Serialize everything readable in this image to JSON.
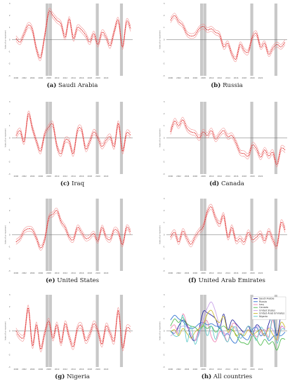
{
  "figure": {
    "shaded_years": [
      2007.6,
      2008.4,
      2019.85,
      2025.75
    ]
  },
  "chart_data": [
    {
      "type": "line",
      "panel": "a",
      "label": "(a)",
      "title": "Saudi Arabia",
      "ylabel": "Index of co-movement",
      "x_range": [
        1999.0,
        2028.5
      ],
      "ylim": [
        -3,
        3
      ],
      "yticks": [
        -3,
        -2,
        -1,
        0,
        1,
        2,
        3
      ],
      "xticks": [
        2000,
        2002,
        2004,
        2006,
        2008,
        2010,
        2012,
        2014,
        2016,
        2018,
        2020,
        2022
      ],
      "band": 0.22,
      "series": [
        {
          "color": "#e03030",
          "x": [
            2000,
            2001,
            2002,
            2003,
            2004,
            2005,
            2006,
            2007,
            2008,
            2009,
            2010,
            2011,
            2012,
            2013,
            2014,
            2015,
            2016,
            2017,
            2018,
            2019,
            2020,
            2021,
            2022,
            2023,
            2024,
            2025,
            2026,
            2027,
            2028
          ],
          "y": [
            0.1,
            -0.2,
            0.5,
            1.2,
            0.8,
            -0.8,
            -1.5,
            0.3,
            2.3,
            2.0,
            1.6,
            1.3,
            0.2,
            1.7,
            0.1,
            1.0,
            0.8,
            0.4,
            -0.2,
            0.5,
            -0.4,
            0.6,
            0.2,
            -0.5,
            0.7,
            1.6,
            -0.6,
            1.5,
            0.9
          ]
        }
      ]
    },
    {
      "type": "line",
      "panel": "b",
      "label": "(b)",
      "title": "Russia",
      "ylabel": "Index of co-movement",
      "x_range": [
        1999.0,
        2028.5
      ],
      "ylim": [
        -3,
        3
      ],
      "yticks": [
        -3,
        -2,
        -1,
        0,
        1,
        2,
        3
      ],
      "xticks": [
        2000,
        2002,
        2004,
        2006,
        2008,
        2010,
        2012,
        2014,
        2016,
        2018,
        2020,
        2022
      ],
      "band": 0.2,
      "series": [
        {
          "color": "#e03030",
          "x": [
            2000,
            2001,
            2002,
            2003,
            2004,
            2005,
            2006,
            2007,
            2008,
            2009,
            2010,
            2011,
            2012,
            2013,
            2014,
            2015,
            2016,
            2017,
            2018,
            2019,
            2020,
            2021,
            2022,
            2023,
            2024,
            2025,
            2026,
            2027,
            2028
          ],
          "y": [
            1.6,
            2.0,
            1.5,
            1.2,
            0.5,
            0.3,
            0.4,
            0.9,
            1.1,
            0.8,
            0.9,
            0.6,
            0.4,
            -0.6,
            -0.3,
            -1.2,
            -1.6,
            -0.4,
            -0.9,
            -1.0,
            0.2,
            0.5,
            -0.6,
            -0.3,
            -1.2,
            -0.7,
            -0.4,
            -0.6,
            -0.2
          ]
        }
      ]
    },
    {
      "type": "line",
      "panel": "c",
      "label": "(c)",
      "title": "Iraq",
      "ylabel": "Index of co-movement",
      "x_range": [
        1999.0,
        2028.5
      ],
      "ylim": [
        -3,
        3
      ],
      "yticks": [
        -3,
        -2,
        -1,
        0,
        1,
        2,
        3
      ],
      "xticks": [
        2000,
        2002,
        2004,
        2006,
        2008,
        2010,
        2012,
        2014,
        2016,
        2018,
        2020,
        2022
      ],
      "band": 0.22,
      "series": [
        {
          "color": "#e03030",
          "x": [
            2000,
            2001,
            2002,
            2003,
            2004,
            2005,
            2006,
            2007,
            2008,
            2009,
            2010,
            2011,
            2012,
            2013,
            2014,
            2015,
            2016,
            2017,
            2018,
            2019,
            2020,
            2021,
            2022,
            2023,
            2024,
            2025,
            2026,
            2027,
            2028
          ],
          "y": [
            0.2,
            0.6,
            -0.3,
            2.0,
            0.8,
            -0.3,
            -1.1,
            0.3,
            0.9,
            1.1,
            -0.7,
            -1.3,
            -0.2,
            -0.3,
            -1.3,
            0.6,
            0.7,
            -0.9,
            -0.3,
            0.5,
            0.0,
            -0.7,
            -0.2,
            0.1,
            -0.7,
            1.2,
            -1.1,
            0.4,
            0.2
          ]
        }
      ]
    },
    {
      "type": "line",
      "panel": "d",
      "label": "(d)",
      "title": "Canada",
      "ylabel": "Index of co-movement",
      "x_range": [
        1999.0,
        2028.5
      ],
      "ylim": [
        -3,
        3
      ],
      "yticks": [
        -3,
        -2,
        -1,
        0,
        1,
        2,
        3
      ],
      "xticks": [
        2000,
        2002,
        2004,
        2006,
        2008,
        2010,
        2012,
        2014,
        2016,
        2018,
        2020,
        2022
      ],
      "band": 0.22,
      "series": [
        {
          "color": "#e03030",
          "x": [
            2000,
            2001,
            2002,
            2003,
            2004,
            2005,
            2006,
            2007,
            2008,
            2009,
            2010,
            2011,
            2012,
            2013,
            2014,
            2015,
            2016,
            2017,
            2018,
            2019,
            2020,
            2021,
            2022,
            2023,
            2024,
            2025,
            2026,
            2027,
            2028
          ],
          "y": [
            0.5,
            1.4,
            1.0,
            1.5,
            0.8,
            0.5,
            0.4,
            0.0,
            0.5,
            0.2,
            0.6,
            -0.1,
            0.3,
            0.6,
            0.1,
            0.2,
            -0.4,
            -1.2,
            -1.3,
            -1.5,
            -0.6,
            -0.9,
            -1.6,
            -1.0,
            -1.5,
            -1.2,
            -2.2,
            -0.9,
            -1.0
          ]
        }
      ]
    },
    {
      "type": "line",
      "panel": "e",
      "label": "(e)",
      "title": "United States",
      "ylabel": "Index of co-movement",
      "x_range": [
        1999.0,
        2028.5
      ],
      "ylim": [
        -3,
        3
      ],
      "yticks": [
        -3,
        -2,
        -1,
        0,
        1,
        2,
        3
      ],
      "xticks": [
        2000,
        2002,
        2004,
        2006,
        2008,
        2010,
        2012,
        2014,
        2016,
        2018,
        2020,
        2022
      ],
      "band": 0.2,
      "series": [
        {
          "color": "#e03030",
          "x": [
            2000,
            2001,
            2002,
            2003,
            2004,
            2005,
            2006,
            2007,
            2008,
            2009,
            2010,
            2011,
            2012,
            2013,
            2014,
            2015,
            2016,
            2017,
            2018,
            2019,
            2020,
            2021,
            2022,
            2023,
            2024,
            2025,
            2026,
            2027,
            2028
          ],
          "y": [
            -0.6,
            -0.3,
            0.3,
            0.5,
            0.4,
            -0.3,
            -1.1,
            -0.4,
            1.4,
            1.7,
            2.0,
            1.1,
            0.6,
            -0.2,
            -0.4,
            0.6,
            0.2,
            -0.3,
            -0.2,
            0.1,
            -0.5,
            0.6,
            -0.2,
            -0.4,
            0.4,
            0.2,
            -0.8,
            0.6,
            0.2
          ]
        }
      ]
    },
    {
      "type": "line",
      "panel": "f",
      "label": "(f)",
      "title": "United Arab Emirates",
      "ylabel": "Index of co-movement",
      "x_range": [
        1999.0,
        2028.5
      ],
      "ylim": [
        -3,
        3
      ],
      "yticks": [
        -3,
        -2,
        -1,
        0,
        1,
        2,
        3
      ],
      "xticks": [
        2000,
        2002,
        2004,
        2006,
        2008,
        2010,
        2012,
        2014,
        2016,
        2018,
        2020,
        2022
      ],
      "band": 0.22,
      "series": [
        {
          "color": "#e03030",
          "x": [
            2000,
            2001,
            2002,
            2003,
            2004,
            2005,
            2006,
            2007,
            2008,
            2009,
            2010,
            2011,
            2012,
            2013,
            2014,
            2015,
            2016,
            2017,
            2018,
            2019,
            2020,
            2021,
            2022,
            2023,
            2024,
            2025,
            2026,
            2027,
            2028
          ],
          "y": [
            -0.2,
            0.2,
            -0.6,
            0.3,
            -0.3,
            -0.8,
            -0.2,
            0.3,
            0.7,
            1.9,
            2.3,
            1.4,
            0.9,
            1.6,
            -0.2,
            0.6,
            -0.5,
            -0.3,
            -0.6,
            0.2,
            -0.4,
            -0.2,
            0.1,
            -0.5,
            0.3,
            -0.4,
            -0.9,
            1.0,
            0.4
          ]
        }
      ]
    },
    {
      "type": "line",
      "panel": "g",
      "label": "(g)",
      "title": "Nigeria",
      "ylabel": "Index of co-movement",
      "x_range": [
        1999.0,
        2028.5
      ],
      "ylim": [
        -3,
        3
      ],
      "yticks": [
        -3,
        -2,
        -1,
        0,
        1,
        2,
        3
      ],
      "xticks": [
        2000,
        2002,
        2004,
        2006,
        2008,
        2010,
        2012,
        2014,
        2016,
        2018,
        2020,
        2022
      ],
      "band": 0.24,
      "series": [
        {
          "color": "#e03030",
          "x": [
            2000,
            2001,
            2002,
            2003,
            2004,
            2005,
            2006,
            2007,
            2008,
            2009,
            2010,
            2011,
            2012,
            2013,
            2014,
            2015,
            2016,
            2017,
            2018,
            2019,
            2020,
            2021,
            2022,
            2023,
            2024,
            2025,
            2026,
            2027,
            2028
          ],
          "y": [
            0.0,
            -0.5,
            -0.4,
            1.9,
            -1.2,
            0.5,
            -1.5,
            -0.2,
            0.8,
            -0.6,
            0.5,
            -1.0,
            0.6,
            -0.5,
            -1.3,
            0.2,
            0.4,
            -0.8,
            -0.3,
            0.6,
            0.0,
            -1.1,
            0.4,
            -0.2,
            -0.8,
            1.7,
            -1.4,
            0.2,
            0.1
          ]
        }
      ]
    },
    {
      "type": "line",
      "panel": "h",
      "label": "(h)",
      "title": "All countries",
      "ylabel": "Index of co-movement",
      "x_range": [
        1999.0,
        2028.5
      ],
      "ylim": [
        -3,
        3
      ],
      "yticks": [
        -3,
        -2,
        -1,
        0,
        1,
        2,
        3
      ],
      "xticks": [
        2000,
        2002,
        2004,
        2006,
        2008,
        2010,
        2012,
        2014,
        2016,
        2018,
        2020,
        2022
      ],
      "legend": "top-right",
      "x": [
        2000,
        2001,
        2002,
        2003,
        2004,
        2005,
        2006,
        2007,
        2008,
        2009,
        2010,
        2011,
        2012,
        2013,
        2014,
        2015,
        2016,
        2017,
        2018,
        2019,
        2020,
        2021,
        2022,
        2023,
        2024,
        2025,
        2026,
        2027,
        2028
      ],
      "series": [
        {
          "name": "Saudi Arabia",
          "color": "#1a1a9a",
          "values": [
            0.0,
            -0.2,
            0.4,
            0.9,
            0.5,
            -0.5,
            -0.8,
            0.2,
            1.6,
            1.5,
            1.3,
            1.0,
            0.2,
            1.4,
            0.1,
            0.9,
            0.6,
            0.2,
            -0.1,
            0.4,
            -0.3,
            0.5,
            0.2,
            -0.4,
            0.6,
            1.3,
            -0.4,
            1.3,
            1.2
          ]
        },
        {
          "name": "Russia",
          "color": "#2a6fd0",
          "values": [
            0.9,
            1.3,
            1.0,
            0.8,
            0.4,
            0.2,
            0.3,
            0.6,
            0.7,
            0.5,
            0.6,
            0.4,
            0.3,
            -0.4,
            -0.2,
            -0.8,
            -1.0,
            -0.3,
            -0.6,
            -0.7,
            0.1,
            0.3,
            -0.4,
            -0.2,
            -0.8,
            -0.5,
            -0.3,
            -0.4,
            -0.1
          ]
        },
        {
          "name": "Iraq",
          "color": "#ef7fb0",
          "values": [
            0.2,
            0.5,
            -0.2,
            1.4,
            0.6,
            -0.2,
            -0.8,
            0.2,
            0.7,
            0.8,
            -0.5,
            -0.9,
            -0.1,
            -0.2,
            -0.9,
            0.5,
            0.5,
            -0.6,
            -0.2,
            0.4,
            0.0,
            -0.5,
            -0.1,
            0.1,
            -0.5,
            0.9,
            -0.8,
            0.3,
            0.2
          ]
        },
        {
          "name": "Canada",
          "color": "#48b848",
          "values": [
            0.4,
            1.0,
            0.7,
            1.1,
            0.6,
            0.4,
            0.3,
            0.0,
            0.4,
            0.2,
            0.4,
            -0.1,
            0.2,
            0.4,
            0.1,
            0.1,
            -0.3,
            -0.9,
            -1.0,
            -1.1,
            -0.4,
            -0.7,
            -1.2,
            -0.7,
            -1.1,
            -0.9,
            -1.6,
            -0.7,
            -0.7
          ]
        },
        {
          "name": "United States",
          "color": "#c8a0e8",
          "values": [
            -0.4,
            -0.2,
            0.2,
            0.4,
            0.3,
            -0.2,
            -0.8,
            -0.3,
            1.0,
            1.9,
            2.4,
            1.6,
            0.4,
            -0.1,
            -0.3,
            0.4,
            0.1,
            -0.2,
            -0.1,
            0.1,
            -0.4,
            0.4,
            -0.1,
            -0.3,
            0.3,
            0.1,
            -0.6,
            0.4,
            0.1
          ]
        },
        {
          "name": "United Arab Emirates",
          "color": "#c8b828",
          "values": [
            -0.1,
            0.1,
            -0.4,
            0.2,
            -0.2,
            -0.6,
            -0.1,
            0.2,
            0.5,
            1.4,
            1.7,
            1.0,
            0.7,
            1.2,
            -0.1,
            0.4,
            -0.4,
            -0.2,
            -0.4,
            0.1,
            -0.3,
            -0.1,
            0.1,
            -0.4,
            0.2,
            -0.3,
            -0.7,
            0.7,
            0.3
          ]
        },
        {
          "name": "Nigeria",
          "color": "#5ac8c8",
          "values": [
            0.0,
            -0.4,
            -0.3,
            1.3,
            -0.9,
            0.4,
            -1.1,
            -0.1,
            0.6,
            -0.4,
            0.4,
            -0.7,
            0.4,
            -0.4,
            -0.9,
            0.1,
            0.3,
            -0.6,
            -0.2,
            0.4,
            0.0,
            -0.8,
            0.3,
            -0.1,
            -0.6,
            1.2,
            -1.0,
            0.1,
            0.1
          ]
        }
      ]
    }
  ]
}
